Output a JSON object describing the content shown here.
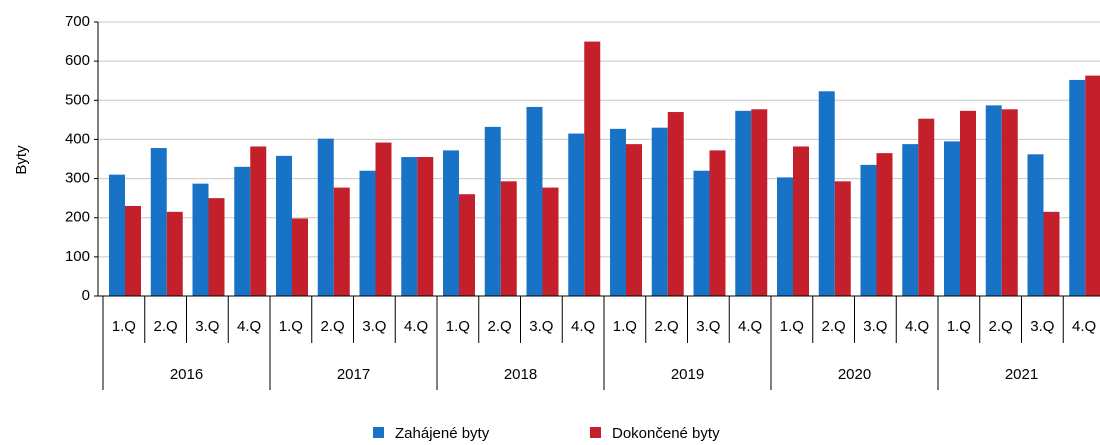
{
  "chart_data": {
    "type": "bar",
    "y_label": "Byty",
    "categories": [
      "1.Q",
      "2.Q",
      "3.Q",
      "4.Q",
      "1.Q",
      "2.Q",
      "3.Q",
      "4.Q",
      "1.Q",
      "2.Q",
      "3.Q",
      "4.Q",
      "1.Q",
      "2.Q",
      "3.Q",
      "4.Q",
      "1.Q",
      "2.Q",
      "3.Q",
      "4.Q",
      "1.Q",
      "2.Q",
      "3.Q",
      "4.Q"
    ],
    "groups": [
      "2016",
      "2017",
      "2018",
      "2019",
      "2020",
      "2021"
    ],
    "series": [
      {
        "name": "Zahájené byty",
        "color": "#1873c6",
        "values": [
          310,
          378,
          287,
          330,
          358,
          402,
          320,
          355,
          372,
          432,
          483,
          415,
          427,
          430,
          320,
          473,
          303,
          523,
          335,
          388,
          395,
          487,
          362,
          552
        ]
      },
      {
        "name": "Dokončené byty",
        "color": "#c3202c",
        "values": [
          230,
          215,
          250,
          382,
          198,
          277,
          392,
          355,
          260,
          293,
          277,
          650,
          388,
          470,
          372,
          477,
          382,
          293,
          365,
          453,
          473,
          477,
          215,
          563
        ]
      }
    ],
    "ylim": [
      0,
      700
    ],
    "yticks": [
      0,
      100,
      200,
      300,
      400,
      500,
      600,
      700
    ],
    "grid": true,
    "legend": "bottom"
  }
}
